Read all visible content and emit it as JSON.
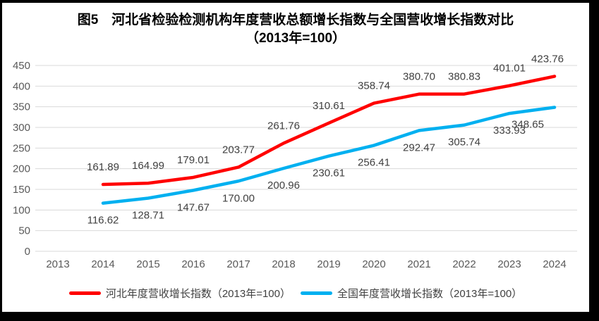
{
  "chart_data": {
    "type": "line",
    "title": "图5　河北省检验检测机构年度营收总额增长指数与全国营收增长指数对比",
    "subtitle": "（2013年=100）",
    "categories": [
      "2013",
      "2014",
      "2015",
      "2016",
      "2017",
      "2018",
      "2019",
      "2020",
      "2021",
      "2022",
      "2023",
      "2024"
    ],
    "series": [
      {
        "name": "河北年度营收增长指数（2013年=100）",
        "color": "#FF0000",
        "label_position": "above",
        "values": [
          null,
          161.89,
          164.99,
          179.01,
          203.77,
          261.76,
          310.61,
          358.74,
          380.7,
          380.83,
          401.01,
          423.76
        ]
      },
      {
        "name": "全国年度营收增长指数（2013年=100）",
        "color": "#00B0F0",
        "label_position": "below",
        "values": [
          null,
          116.62,
          128.71,
          147.67,
          170.0,
          200.96,
          230.61,
          256.41,
          292.47,
          305.74,
          333.93,
          348.65
        ]
      }
    ],
    "xlabel": "",
    "ylabel": "",
    "ylim": [
      0,
      450
    ],
    "ytick_step": 50,
    "grid": true,
    "legend_position": "bottom",
    "axis_color": "#595959",
    "gridline_color": "#D9D9D9",
    "data_label_color": "#404040"
  }
}
